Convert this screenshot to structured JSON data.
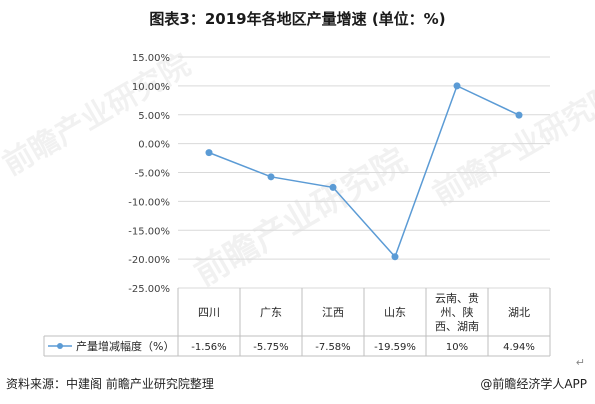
{
  "title": "图表3：2019年各地区产量增速 (单位：%)",
  "footer": {
    "source": "资料来源：中建阁 前瞻产业研究院整理",
    "brand": "@前瞻经济学人APP"
  },
  "watermark": "前瞻产业研究院",
  "colors": {
    "series": "#5B9BD5",
    "grid": "#D9D9D9",
    "axis": "#BFBFBF"
  },
  "chart_data": {
    "type": "line",
    "categories": [
      "四川",
      "广东",
      "江西",
      "山东",
      "云南、贵州、陕西、湖南",
      "湖北"
    ],
    "category_lines": [
      [
        "四川"
      ],
      [
        "广东"
      ],
      [
        "江西"
      ],
      [
        "山东"
      ],
      [
        "云南、贵",
        "州、陕",
        "西、湖南"
      ],
      [
        "湖北"
      ]
    ],
    "series": [
      {
        "name": "产量增减幅度（%）",
        "values": [
          -1.56,
          -5.75,
          -7.58,
          -19.59,
          10,
          4.94
        ],
        "value_labels": [
          "-1.56%",
          "-5.75%",
          "-7.58%",
          "-19.59%",
          "10%",
          "4.94%"
        ]
      }
    ],
    "ylim": [
      -25,
      15
    ],
    "yticks": [
      15,
      10,
      5,
      0,
      -5,
      -10,
      -15,
      -20,
      -25
    ],
    "ytick_labels": [
      "15.00%",
      "10.00%",
      "5.00%",
      "0.00%",
      "-5.00%",
      "-10.00%",
      "-15.00%",
      "-20.00%",
      "-25.00%"
    ],
    "grid": true,
    "legend": "data-table"
  }
}
